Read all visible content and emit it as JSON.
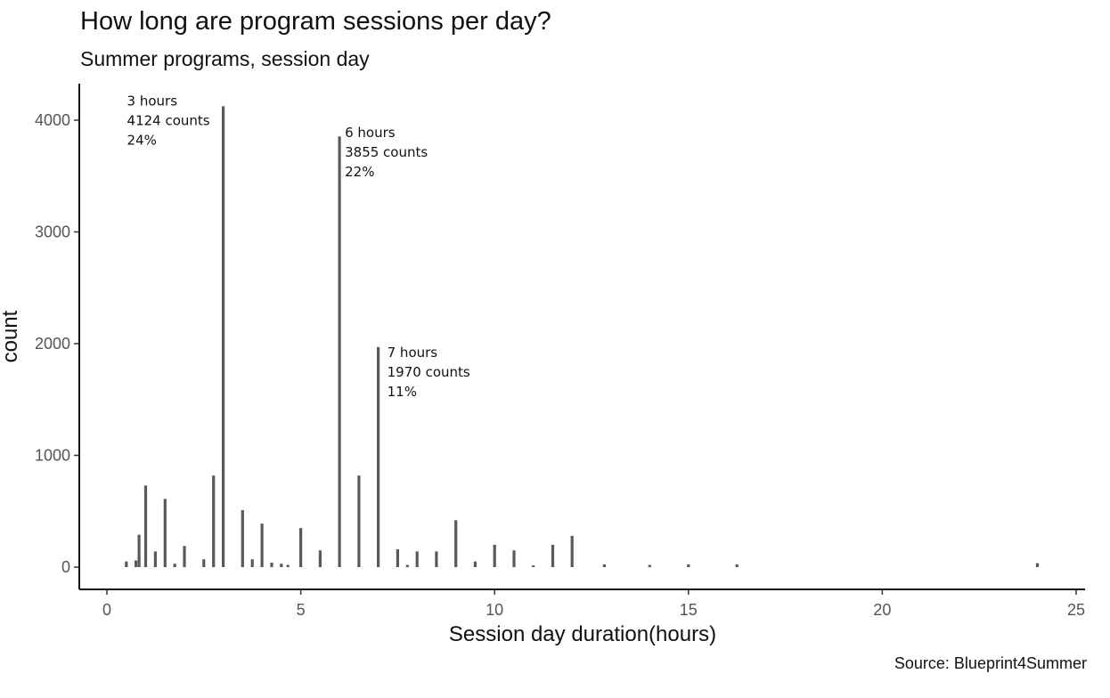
{
  "chart_data": {
    "type": "bar",
    "title": "How long are program sessions per day?",
    "subtitle": "Summer programs, session day",
    "caption": "Source: Blueprint4Summer",
    "xlabel": "Session day duration(hours)",
    "ylabel": "count",
    "xlim": [
      0,
      25
    ],
    "ylim": [
      0,
      4124
    ],
    "x_ticks": [
      0,
      5,
      10,
      15,
      20,
      25
    ],
    "y_ticks": [
      0,
      1000,
      2000,
      3000,
      4000
    ],
    "grid": false,
    "bar_color": "#595959",
    "bars": [
      {
        "x": 0.5,
        "count": 50
      },
      {
        "x": 0.75,
        "count": 60
      },
      {
        "x": 0.83,
        "count": 290
      },
      {
        "x": 1.0,
        "count": 730
      },
      {
        "x": 1.25,
        "count": 140
      },
      {
        "x": 1.5,
        "count": 610
      },
      {
        "x": 1.75,
        "count": 30
      },
      {
        "x": 2.0,
        "count": 190
      },
      {
        "x": 2.5,
        "count": 70
      },
      {
        "x": 2.75,
        "count": 820
      },
      {
        "x": 3.0,
        "count": 4124
      },
      {
        "x": 3.5,
        "count": 510
      },
      {
        "x": 3.75,
        "count": 70
      },
      {
        "x": 4.0,
        "count": 390
      },
      {
        "x": 4.25,
        "count": 40
      },
      {
        "x": 4.5,
        "count": 30
      },
      {
        "x": 4.67,
        "count": 20
      },
      {
        "x": 5.0,
        "count": 350
      },
      {
        "x": 5.5,
        "count": 150
      },
      {
        "x": 6.0,
        "count": 3855
      },
      {
        "x": 6.5,
        "count": 820
      },
      {
        "x": 7.0,
        "count": 1970
      },
      {
        "x": 7.5,
        "count": 160
      },
      {
        "x": 7.75,
        "count": 20
      },
      {
        "x": 8.0,
        "count": 140
      },
      {
        "x": 8.5,
        "count": 140
      },
      {
        "x": 9.0,
        "count": 420
      },
      {
        "x": 9.5,
        "count": 50
      },
      {
        "x": 10.0,
        "count": 200
      },
      {
        "x": 10.5,
        "count": 150
      },
      {
        "x": 11.0,
        "count": 15
      },
      {
        "x": 11.5,
        "count": 200
      },
      {
        "x": 12.0,
        "count": 280
      },
      {
        "x": 12.83,
        "count": 25
      },
      {
        "x": 14.0,
        "count": 20
      },
      {
        "x": 15.0,
        "count": 25
      },
      {
        "x": 16.25,
        "count": 25
      },
      {
        "x": 24.0,
        "count": 35
      }
    ],
    "annotations": [
      {
        "x": 3.0,
        "count": 4124,
        "lines": [
          "3 hours",
          "4124 counts",
          "24%"
        ],
        "position": "left"
      },
      {
        "x": 6.0,
        "count": 3855,
        "lines": [
          "6 hours",
          "3855 counts",
          "22%"
        ],
        "position": "right"
      },
      {
        "x": 7.0,
        "count": 1970,
        "lines": [
          "7 hours",
          "1970 counts",
          "11%"
        ],
        "position": "right"
      }
    ]
  }
}
